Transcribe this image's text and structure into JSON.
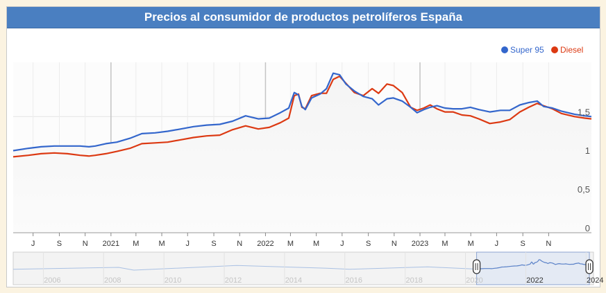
{
  "chart_data": {
    "type": "line",
    "title": "Precios al consumidor de productos petrolíferos España",
    "legend_position": "top-right",
    "ylim": [
      0,
      2.2
    ],
    "y_ticks": [
      {
        "value": 0,
        "label": "0"
      },
      {
        "value": 0.5,
        "label": "0,5"
      },
      {
        "value": 1,
        "label": "1"
      },
      {
        "value": 1.5,
        "label": "1,5"
      }
    ],
    "x_range": [
      "2020-05-15",
      "2024-02-10"
    ],
    "x_ticks": [
      {
        "date": "2020-07-01",
        "label": "J",
        "major": false
      },
      {
        "date": "2020-09-01",
        "label": "S",
        "major": false
      },
      {
        "date": "2020-11-01",
        "label": "N",
        "major": false
      },
      {
        "date": "2021-01-01",
        "label": "2021",
        "major": true
      },
      {
        "date": "2021-03-01",
        "label": "M",
        "major": false
      },
      {
        "date": "2021-05-01",
        "label": "M",
        "major": false
      },
      {
        "date": "2021-07-01",
        "label": "J",
        "major": false
      },
      {
        "date": "2021-09-01",
        "label": "S",
        "major": false
      },
      {
        "date": "2021-11-01",
        "label": "N",
        "major": false
      },
      {
        "date": "2022-01-01",
        "label": "2022",
        "major": true
      },
      {
        "date": "2022-03-01",
        "label": "M",
        "major": false
      },
      {
        "date": "2022-05-01",
        "label": "M",
        "major": false
      },
      {
        "date": "2022-07-01",
        "label": "J",
        "major": false
      },
      {
        "date": "2022-09-01",
        "label": "S",
        "major": false
      },
      {
        "date": "2022-11-01",
        "label": "N",
        "major": false
      },
      {
        "date": "2023-01-01",
        "label": "2023",
        "major": true
      },
      {
        "date": "2023-03-01",
        "label": "M",
        "major": false
      },
      {
        "date": "2023-05-01",
        "label": "M",
        "major": false
      },
      {
        "date": "2023-07-01",
        "label": "J",
        "major": false
      },
      {
        "date": "2023-09-01",
        "label": "S",
        "major": false
      },
      {
        "date": "2023-11-01",
        "label": "N",
        "major": false
      }
    ],
    "series": [
      {
        "name": "Super 95",
        "color": "#3366cc",
        "points": [
          [
            "2020-05-15",
            1.06
          ],
          [
            "2020-06-20",
            1.09
          ],
          [
            "2020-07-20",
            1.11
          ],
          [
            "2020-08-20",
            1.12
          ],
          [
            "2020-09-20",
            1.12
          ],
          [
            "2020-10-20",
            1.12
          ],
          [
            "2020-11-10",
            1.11
          ],
          [
            "2020-11-25",
            1.12
          ],
          [
            "2020-12-20",
            1.15
          ],
          [
            "2021-01-15",
            1.17
          ],
          [
            "2021-02-15",
            1.22
          ],
          [
            "2021-03-15",
            1.28
          ],
          [
            "2021-04-15",
            1.29
          ],
          [
            "2021-05-15",
            1.31
          ],
          [
            "2021-06-15",
            1.34
          ],
          [
            "2021-07-15",
            1.37
          ],
          [
            "2021-08-15",
            1.39
          ],
          [
            "2021-09-15",
            1.4
          ],
          [
            "2021-10-15",
            1.44
          ],
          [
            "2021-11-15",
            1.51
          ],
          [
            "2021-12-15",
            1.47
          ],
          [
            "2022-01-10",
            1.48
          ],
          [
            "2022-02-05",
            1.55
          ],
          [
            "2022-02-25",
            1.61
          ],
          [
            "2022-03-10",
            1.81
          ],
          [
            "2022-03-20",
            1.78
          ],
          [
            "2022-03-28",
            1.63
          ],
          [
            "2022-04-05",
            1.59
          ],
          [
            "2022-04-20",
            1.74
          ],
          [
            "2022-05-10",
            1.79
          ],
          [
            "2022-05-25",
            1.86
          ],
          [
            "2022-06-10",
            2.06
          ],
          [
            "2022-06-25",
            2.04
          ],
          [
            "2022-07-10",
            1.92
          ],
          [
            "2022-07-30",
            1.83
          ],
          [
            "2022-08-20",
            1.76
          ],
          [
            "2022-09-10",
            1.73
          ],
          [
            "2022-09-25",
            1.65
          ],
          [
            "2022-10-15",
            1.73
          ],
          [
            "2022-10-30",
            1.74
          ],
          [
            "2022-11-20",
            1.7
          ],
          [
            "2022-12-10",
            1.62
          ],
          [
            "2022-12-25",
            1.55
          ],
          [
            "2023-01-10",
            1.59
          ],
          [
            "2023-01-25",
            1.62
          ],
          [
            "2023-02-10",
            1.64
          ],
          [
            "2023-03-01",
            1.61
          ],
          [
            "2023-03-20",
            1.6
          ],
          [
            "2023-04-10",
            1.6
          ],
          [
            "2023-04-30",
            1.62
          ],
          [
            "2023-05-20",
            1.59
          ],
          [
            "2023-06-15",
            1.56
          ],
          [
            "2023-07-10",
            1.58
          ],
          [
            "2023-08-01",
            1.58
          ],
          [
            "2023-08-25",
            1.65
          ],
          [
            "2023-09-15",
            1.68
          ],
          [
            "2023-10-05",
            1.7
          ],
          [
            "2023-10-20",
            1.63
          ],
          [
            "2023-11-10",
            1.61
          ],
          [
            "2023-12-01",
            1.57
          ],
          [
            "2024-01-01",
            1.53
          ],
          [
            "2024-01-25",
            1.51
          ],
          [
            "2024-02-10",
            1.5
          ]
        ]
      },
      {
        "name": "Diesel",
        "color": "#dc3912",
        "points": [
          [
            "2020-05-15",
            0.98
          ],
          [
            "2020-06-20",
            1.0
          ],
          [
            "2020-07-20",
            1.02
          ],
          [
            "2020-08-20",
            1.03
          ],
          [
            "2020-09-20",
            1.02
          ],
          [
            "2020-10-20",
            1.0
          ],
          [
            "2020-11-10",
            0.99
          ],
          [
            "2020-11-25",
            1.0
          ],
          [
            "2020-12-20",
            1.02
          ],
          [
            "2021-01-15",
            1.05
          ],
          [
            "2021-02-15",
            1.09
          ],
          [
            "2021-03-15",
            1.15
          ],
          [
            "2021-04-15",
            1.16
          ],
          [
            "2021-05-15",
            1.17
          ],
          [
            "2021-06-15",
            1.2
          ],
          [
            "2021-07-15",
            1.23
          ],
          [
            "2021-08-15",
            1.25
          ],
          [
            "2021-09-15",
            1.26
          ],
          [
            "2021-10-15",
            1.33
          ],
          [
            "2021-11-15",
            1.38
          ],
          [
            "2021-12-15",
            1.34
          ],
          [
            "2022-01-10",
            1.36
          ],
          [
            "2022-02-05",
            1.42
          ],
          [
            "2022-02-25",
            1.48
          ],
          [
            "2022-03-10",
            1.77
          ],
          [
            "2022-03-20",
            1.79
          ],
          [
            "2022-03-28",
            1.62
          ],
          [
            "2022-04-05",
            1.6
          ],
          [
            "2022-04-20",
            1.77
          ],
          [
            "2022-05-10",
            1.8
          ],
          [
            "2022-05-25",
            1.8
          ],
          [
            "2022-06-10",
            1.98
          ],
          [
            "2022-06-25",
            2.02
          ],
          [
            "2022-07-10",
            1.93
          ],
          [
            "2022-07-30",
            1.81
          ],
          [
            "2022-08-20",
            1.77
          ],
          [
            "2022-09-10",
            1.86
          ],
          [
            "2022-09-25",
            1.8
          ],
          [
            "2022-10-15",
            1.92
          ],
          [
            "2022-10-30",
            1.9
          ],
          [
            "2022-11-20",
            1.81
          ],
          [
            "2022-12-10",
            1.62
          ],
          [
            "2022-12-25",
            1.58
          ],
          [
            "2023-01-10",
            1.61
          ],
          [
            "2023-01-25",
            1.65
          ],
          [
            "2023-02-10",
            1.6
          ],
          [
            "2023-03-01",
            1.56
          ],
          [
            "2023-03-20",
            1.56
          ],
          [
            "2023-04-10",
            1.52
          ],
          [
            "2023-04-30",
            1.51
          ],
          [
            "2023-05-20",
            1.47
          ],
          [
            "2023-06-15",
            1.41
          ],
          [
            "2023-07-10",
            1.43
          ],
          [
            "2023-08-01",
            1.46
          ],
          [
            "2023-08-25",
            1.56
          ],
          [
            "2023-09-15",
            1.62
          ],
          [
            "2023-10-05",
            1.67
          ],
          [
            "2023-10-20",
            1.64
          ],
          [
            "2023-11-10",
            1.6
          ],
          [
            "2023-12-01",
            1.54
          ],
          [
            "2024-01-01",
            1.5
          ],
          [
            "2024-01-25",
            1.48
          ],
          [
            "2024-02-10",
            1.47
          ]
        ]
      }
    ],
    "navigator": {
      "x_range": [
        "2005-01-01",
        "2024-03-31"
      ],
      "selection": [
        "2020-05-15",
        "2024-02-10"
      ],
      "year_labels": [
        {
          "date": "2006-01-01",
          "label": "2006"
        },
        {
          "date": "2008-01-01",
          "label": "2008"
        },
        {
          "date": "2010-01-01",
          "label": "2010"
        },
        {
          "date": "2012-01-01",
          "label": "2012"
        },
        {
          "date": "2014-01-01",
          "label": "2014"
        },
        {
          "date": "2016-01-01",
          "label": "2016"
        },
        {
          "date": "2018-01-01",
          "label": "2018"
        },
        {
          "date": "2020-01-01",
          "label": "2020"
        },
        {
          "date": "2022-01-01",
          "label": "2022"
        },
        {
          "date": "2024-01-01",
          "label": "2024"
        }
      ]
    }
  }
}
